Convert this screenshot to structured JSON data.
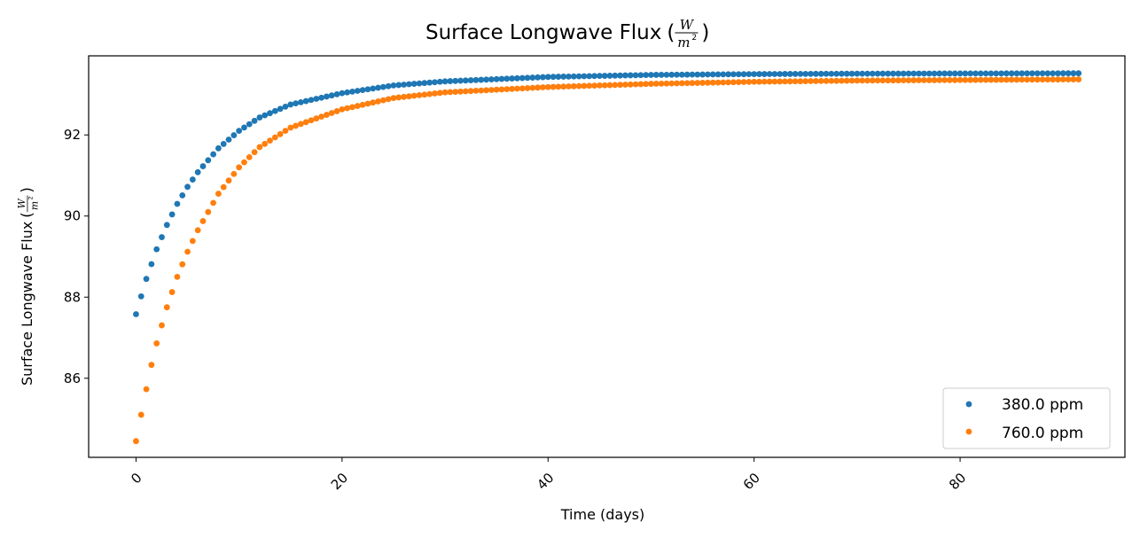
{
  "chart_data": {
    "type": "scatter",
    "title": "Surface Longwave Flux",
    "unit": {
      "numerator": "W",
      "denominator": "m",
      "exponent": "2"
    },
    "xlabel": "Time (days)",
    "ylabel": "Surface Longwave Flux",
    "xlim": [
      -4.6,
      96.0
    ],
    "ylim": [
      84.05,
      93.95
    ],
    "xticks": [
      0,
      20,
      40,
      60,
      80
    ],
    "xtick_rotation": 45,
    "yticks": [
      86,
      88,
      90,
      92
    ],
    "grid": false,
    "legend": "lower-right",
    "time_step_days": 0.5,
    "n_points": 184,
    "series": [
      {
        "name": "380.0 ppm",
        "color": "#1f77b4",
        "anchors": [
          [
            0.0,
            87.58
          ],
          [
            0.5,
            88.02
          ],
          [
            1.0,
            88.45
          ],
          [
            2.0,
            89.18
          ],
          [
            3.0,
            89.78
          ],
          [
            4.0,
            90.3
          ],
          [
            5.0,
            90.72
          ],
          [
            6.0,
            91.08
          ],
          [
            8.0,
            91.67
          ],
          [
            10.0,
            92.1
          ],
          [
            12.0,
            92.43
          ],
          [
            15.0,
            92.75
          ],
          [
            20.0,
            93.03
          ],
          [
            25.0,
            93.22
          ],
          [
            30.0,
            93.32
          ],
          [
            40.0,
            93.43
          ],
          [
            50.0,
            93.48
          ],
          [
            60.0,
            93.5
          ],
          [
            70.0,
            93.51
          ],
          [
            91.5,
            93.52
          ]
        ]
      },
      {
        "name": "760.0 ppm",
        "color": "#ff7f0e",
        "anchors": [
          [
            0.0,
            84.45
          ],
          [
            0.5,
            85.1
          ],
          [
            1.0,
            85.73
          ],
          [
            1.5,
            86.33
          ],
          [
            2.0,
            86.86
          ],
          [
            3.0,
            87.75
          ],
          [
            4.0,
            88.5
          ],
          [
            5.0,
            89.12
          ],
          [
            6.0,
            89.65
          ],
          [
            8.0,
            90.55
          ],
          [
            10.0,
            91.2
          ],
          [
            12.0,
            91.7
          ],
          [
            15.0,
            92.18
          ],
          [
            20.0,
            92.63
          ],
          [
            25.0,
            92.91
          ],
          [
            30.0,
            93.05
          ],
          [
            40.0,
            93.18
          ],
          [
            50.0,
            93.26
          ],
          [
            60.0,
            93.31
          ],
          [
            70.0,
            93.34
          ],
          [
            91.5,
            93.37
          ]
        ]
      }
    ]
  }
}
